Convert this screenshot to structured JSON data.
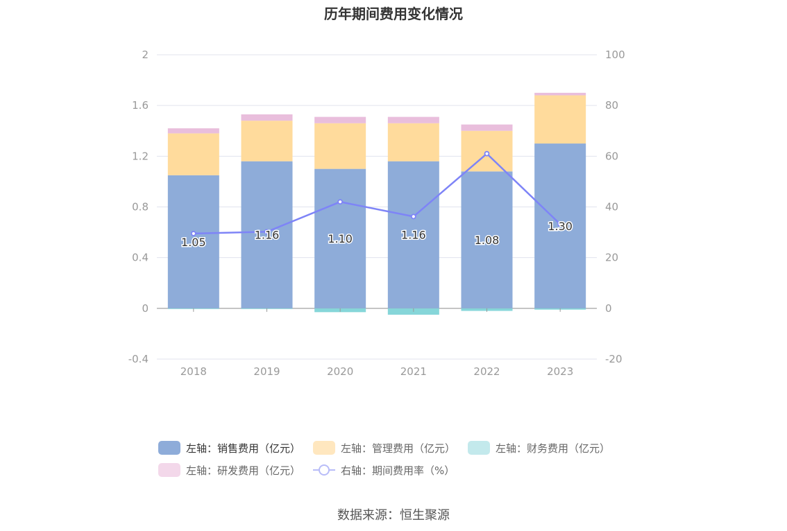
{
  "chart_data": {
    "type": "bar",
    "title": "历年期间费用变化情况",
    "categories": [
      "2018",
      "2019",
      "2020",
      "2021",
      "2022",
      "2023"
    ],
    "stacked": true,
    "left_axis": {
      "ylim": [
        -0.4,
        2
      ],
      "ticks": [
        "-0.4",
        "0",
        "0.4",
        "0.8",
        "1.2",
        "1.6",
        "2"
      ]
    },
    "right_axis": {
      "ylim": [
        -20,
        100
      ],
      "ticks": [
        "-20",
        "0",
        "20",
        "40",
        "60",
        "80",
        "100"
      ]
    },
    "grid": true,
    "legend_position": "bottom",
    "series": [
      {
        "name": "左轴：销售费用（亿元）",
        "axis": "left",
        "type": "bar",
        "color": "#8eacd9",
        "values": [
          1.05,
          1.16,
          1.1,
          1.16,
          1.08,
          1.3
        ],
        "labels": [
          "1.05",
          "1.16",
          "1.10",
          "1.16",
          "1.08",
          "1.30"
        ]
      },
      {
        "name": "左轴：管理费用（亿元）",
        "axis": "left",
        "type": "bar",
        "color": "#ffdb9c",
        "values": [
          0.33,
          0.32,
          0.36,
          0.3,
          0.32,
          0.38
        ]
      },
      {
        "name": "左轴：财务费用（亿元）",
        "axis": "left",
        "type": "bar",
        "color": "#86d6d9",
        "values": [
          -0.005,
          -0.005,
          -0.03,
          -0.05,
          -0.02,
          -0.01
        ]
      },
      {
        "name": "左轴：研发费用（亿元）",
        "axis": "left",
        "type": "bar",
        "color": "#e9bedc",
        "values": [
          0.04,
          0.05,
          0.05,
          0.05,
          0.05,
          0.02
        ]
      },
      {
        "name": "右轴：期间费用率（%）",
        "axis": "right",
        "type": "line",
        "color": "#7e84f7",
        "values": [
          29.5,
          30.2,
          42.0,
          36.2,
          61.0,
          33.2
        ]
      }
    ]
  },
  "legend": {
    "items": [
      {
        "label": "左轴：销售费用（亿元）",
        "color": "#8eacd9",
        "kind": "bar"
      },
      {
        "label": "左轴：管理费用（亿元）",
        "color": "#ffe7bf",
        "kind": "bar"
      },
      {
        "label": "左轴：财务费用（亿元）",
        "color": "#c3e9ec",
        "kind": "bar"
      },
      {
        "label": "左轴：研发费用（亿元）",
        "color": "#f3d8ea",
        "kind": "bar"
      },
      {
        "label": "右轴：期间费用率（%）",
        "color": "#7e84f7",
        "kind": "line"
      }
    ]
  },
  "source": "数据来源：恒生聚源"
}
